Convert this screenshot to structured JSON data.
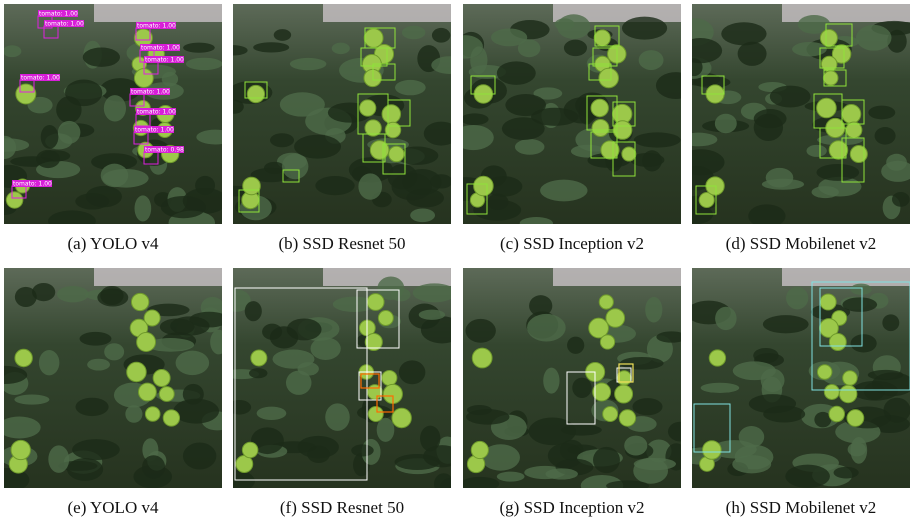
{
  "figure": {
    "panels": [
      {
        "caption": "(a) YOLO v4",
        "labels": [
          "tomato: 1.00",
          "tomato: 1.00",
          "tomato: 1.00",
          "tomato: 1.00",
          "tomato: 1.00",
          "tomato: 1.00",
          "tomato: 1.00",
          "tomato: 1.00",
          "tomato: 1.00",
          "tomato: 0.98",
          "tomato: 1.00"
        ]
      },
      {
        "caption": "(b) SSD Resnet 50"
      },
      {
        "caption": "(c) SSD Inception v2"
      },
      {
        "caption": "(d) SSD Mobilenet v2"
      },
      {
        "caption": "(e) YOLO v4"
      },
      {
        "caption": "(f) SSD Resnet 50"
      },
      {
        "caption": "(g) SSD Inception v2"
      },
      {
        "caption": "(h) SSD Mobilenet v2"
      }
    ]
  }
}
